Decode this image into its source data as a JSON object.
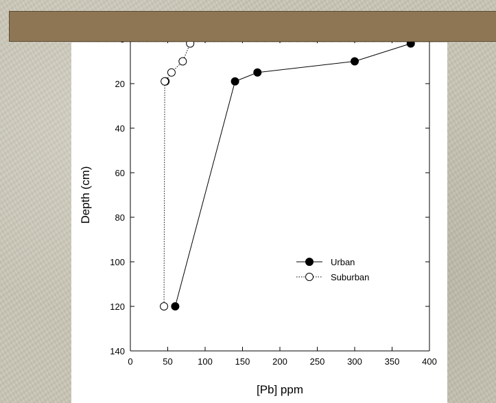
{
  "slide": {
    "title": "",
    "header_color": "#8e7654"
  },
  "chart_data": {
    "type": "line",
    "xlabel": "[Pb] ppm",
    "ylabel": "Depth (cm)",
    "xlim": [
      0,
      400
    ],
    "ylim": [
      0,
      140
    ],
    "y_inverted": true,
    "x_ticks": [
      0,
      50,
      100,
      150,
      200,
      250,
      300,
      350,
      400
    ],
    "y_ticks": [
      0,
      20,
      40,
      60,
      80,
      100,
      120,
      140
    ],
    "grid": false,
    "legend_position": "lower-right",
    "series": [
      {
        "name": "Urban",
        "marker": "filled-circle",
        "line_style": "solid",
        "color": "#000000",
        "x": [
          375,
          300,
          170,
          140,
          60
        ],
        "y": [
          2,
          10,
          15,
          19,
          120
        ]
      },
      {
        "name": "Suburban",
        "marker": "open-circle",
        "line_style": "dotted",
        "color": "#000000",
        "x": [
          80,
          70,
          55,
          47,
          46,
          45
        ],
        "y": [
          2,
          10,
          15,
          19,
          19,
          120
        ]
      }
    ]
  }
}
